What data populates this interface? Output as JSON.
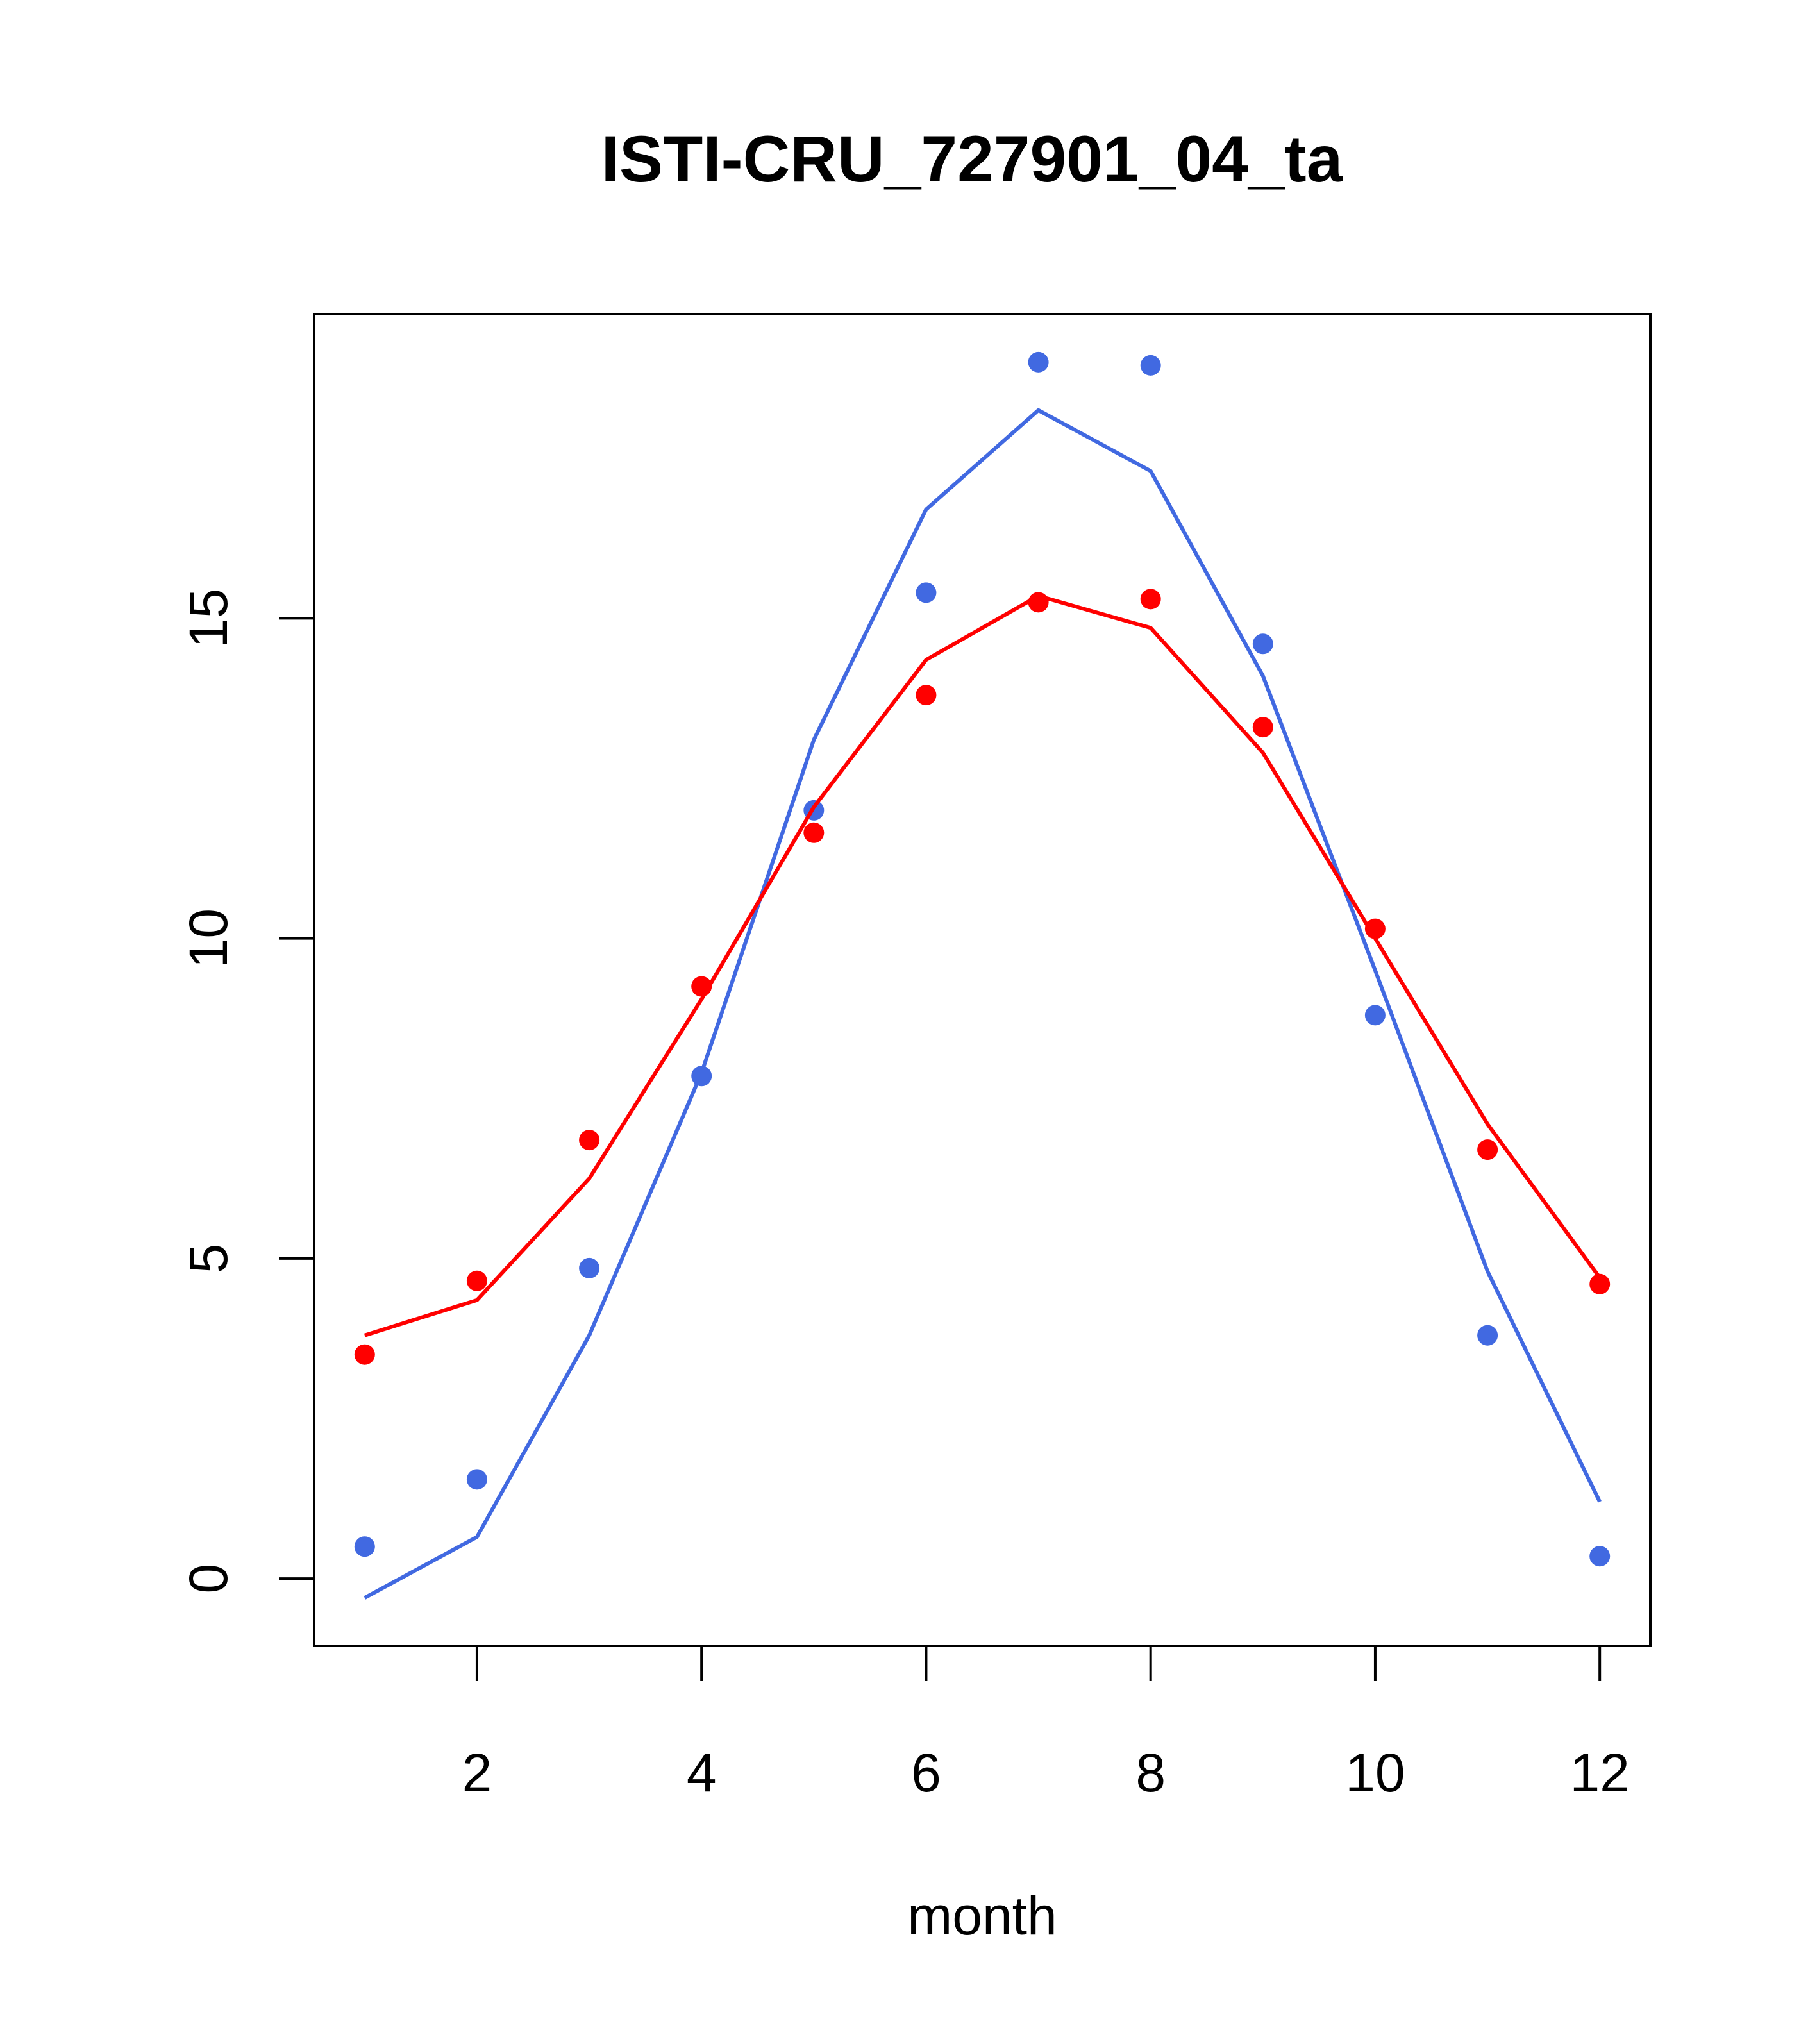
{
  "chart_data": {
    "type": "line",
    "title": "ISTI-CRU_727901_04_ta",
    "xlabel": "month",
    "ylabel": "",
    "xlim": [
      0.55,
      12.45
    ],
    "ylim": [
      -1.05,
      19.75
    ],
    "x_ticks": [
      2,
      4,
      6,
      8,
      10,
      12
    ],
    "y_ticks": [
      0,
      5,
      10,
      15
    ],
    "grid": false,
    "legend": "none",
    "x": [
      1,
      2,
      3,
      4,
      5,
      6,
      7,
      8,
      9,
      10,
      11,
      12
    ],
    "series": [
      {
        "color": "#4169E1",
        "points": [
          0.5,
          1.55,
          4.85,
          7.85,
          12.0,
          15.4,
          19.0,
          18.95,
          14.6,
          8.8,
          3.8,
          0.35
        ],
        "line": [
          -0.3,
          0.65,
          3.8,
          7.9,
          13.1,
          16.7,
          18.25,
          17.3,
          14.1,
          9.5,
          4.8,
          1.2
        ]
      },
      {
        "color": "#FF0000",
        "points": [
          3.5,
          4.65,
          6.85,
          9.25,
          11.65,
          13.8,
          15.25,
          15.3,
          13.3,
          10.15,
          6.7,
          4.6
        ],
        "line": [
          3.8,
          4.35,
          6.25,
          9.05,
          12.05,
          14.35,
          15.35,
          14.85,
          12.9,
          10.0,
          7.1,
          4.7
        ]
      }
    ]
  }
}
